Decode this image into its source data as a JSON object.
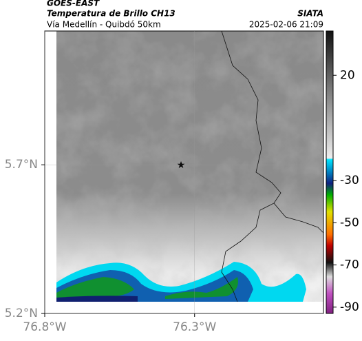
{
  "header": {
    "title": "GOES-EAST",
    "subtitle": "Temperatura de Brillo CH13",
    "route": "Vía Medellín - Quibdó 50km",
    "source": "SIATA",
    "timestamp": "2025-02-06 21:09"
  },
  "map": {
    "xlim": [
      -76.8,
      -75.87
    ],
    "ylim": [
      5.2,
      6.15
    ],
    "xticks": [
      {
        "value": -76.8,
        "label": "76.8°W"
      },
      {
        "value": -76.3,
        "label": "76.3°W"
      }
    ],
    "yticks": [
      {
        "value": 5.2,
        "label": "5.2°N"
      },
      {
        "value": 5.7,
        "label": "5.7°N"
      }
    ]
  },
  "colorbar": {
    "lim": [
      -93,
      41
    ],
    "ticks": [
      20,
      -30,
      -50,
      -70,
      -90
    ]
  }
}
